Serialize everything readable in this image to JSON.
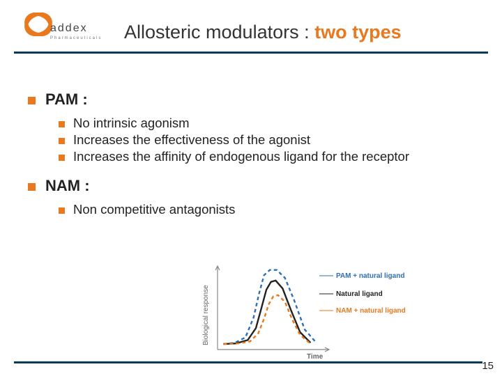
{
  "colors": {
    "accent": "#e8791e",
    "rule": "#0a3a5a",
    "text": "#222222",
    "logo_mark": "#e8791e",
    "logo_text": "#444444",
    "logo_sub": "#777777"
  },
  "logo": {
    "wordmark": "addex",
    "subtext": "Pharmaceuticals"
  },
  "title": {
    "plain": "Allosteric modulators : ",
    "accent": "two types"
  },
  "sections": [
    {
      "heading": "PAM :",
      "items": [
        "No intrinsic agonism",
        "Increases the effectiveness of the agonist",
        "Increases the affinity of endogenous ligand for the receptor"
      ]
    },
    {
      "heading": "NAM :",
      "items": [
        "Non competitive antagonists"
      ]
    }
  ],
  "chart": {
    "type": "line",
    "x_label": "Time",
    "y_label": "Biological response",
    "axis_color": "#888888",
    "axis_width": 1.2,
    "label_fontsize": 10,
    "label_color": "#666666",
    "series": [
      {
        "name": "PAM + natural ligand",
        "color": "#2f6fb3",
        "dash": "5,4",
        "width": 2.4,
        "points": [
          [
            10,
            118
          ],
          [
            30,
            116
          ],
          [
            48,
            108
          ],
          [
            62,
            78
          ],
          [
            72,
            40
          ],
          [
            80,
            14
          ],
          [
            90,
            6
          ],
          [
            102,
            6
          ],
          [
            116,
            18
          ],
          [
            132,
            52
          ],
          [
            150,
            96
          ],
          [
            170,
            116
          ]
        ]
      },
      {
        "name": "Natural ligand",
        "color": "#222222",
        "dash": "",
        "width": 2.4,
        "points": [
          [
            10,
            118
          ],
          [
            32,
            117
          ],
          [
            52,
            112
          ],
          [
            66,
            94
          ],
          [
            76,
            62
          ],
          [
            84,
            36
          ],
          [
            92,
            24
          ],
          [
            100,
            22
          ],
          [
            112,
            34
          ],
          [
            126,
            66
          ],
          [
            142,
            100
          ],
          [
            160,
            116
          ]
        ]
      },
      {
        "name": "NAM + natural ligand",
        "color": "#e8791e",
        "dash": "5,4",
        "width": 2.4,
        "points": [
          [
            10,
            118
          ],
          [
            36,
            117
          ],
          [
            56,
            114
          ],
          [
            70,
            102
          ],
          [
            80,
            80
          ],
          [
            88,
            58
          ],
          [
            96,
            46
          ],
          [
            104,
            44
          ],
          [
            116,
            54
          ],
          [
            128,
            80
          ],
          [
            142,
            104
          ],
          [
            158,
            116
          ]
        ]
      }
    ],
    "legend": [
      {
        "label": "PAM + natural ligand",
        "color": "#2f6fb3",
        "y": 18
      },
      {
        "label": "Natural ligand",
        "color": "#222222",
        "y": 44
      },
      {
        "label": "NAM + natural ligand",
        "color": "#e8791e",
        "y": 68
      }
    ]
  },
  "page_number": "15"
}
